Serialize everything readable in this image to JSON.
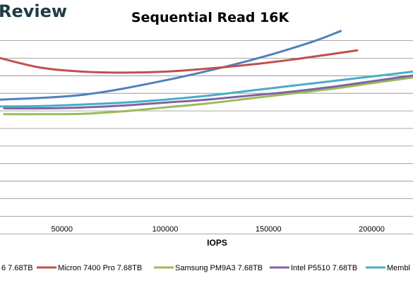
{
  "brand": {
    "text": "Review"
  },
  "chart_data": {
    "type": "line",
    "title": "Sequential Read 16K",
    "xlabel": "IOPS",
    "ylabel": "",
    "x_ticks": [
      50000,
      100000,
      150000,
      200000
    ],
    "x_tick_labels": [
      "50000",
      "100000",
      "150000",
      "200000"
    ],
    "xlim": [
      20000,
      220000
    ],
    "ylim": [
      0,
      10
    ],
    "grid": "horizontal",
    "legend_position": "bottom",
    "series": [
      {
        "name": "6 7.68TB",
        "color": "#4f81bd",
        "points": [
          [
            20000,
            6.05
          ],
          [
            60000,
            6.3
          ],
          [
            100000,
            7.05
          ],
          [
            140000,
            8.05
          ],
          [
            170000,
            9.0
          ],
          [
            185000,
            9.6
          ]
        ]
      },
      {
        "name": "Micron 7400 Pro 7.68TB",
        "color": "#c0504d",
        "points": [
          [
            20000,
            8.2
          ],
          [
            40000,
            7.7
          ],
          [
            60000,
            7.5
          ],
          [
            80000,
            7.45
          ],
          [
            100000,
            7.5
          ],
          [
            120000,
            7.65
          ],
          [
            140000,
            7.85
          ],
          [
            160000,
            8.1
          ],
          [
            180000,
            8.4
          ],
          [
            193000,
            8.6
          ]
        ]
      },
      {
        "name": "Samsung PM9A3 7.68TB",
        "color": "#9bbb59",
        "points": [
          [
            22000,
            5.3
          ],
          [
            40000,
            5.3
          ],
          [
            60000,
            5.32
          ],
          [
            80000,
            5.45
          ],
          [
            100000,
            5.65
          ],
          [
            120000,
            5.85
          ],
          [
            140000,
            6.1
          ],
          [
            160000,
            6.35
          ],
          [
            180000,
            6.6
          ],
          [
            200000,
            6.9
          ],
          [
            220000,
            7.2
          ]
        ]
      },
      {
        "name": "Intel P5510 7.68TB",
        "color": "#8064a2",
        "points": [
          [
            22000,
            5.6
          ],
          [
            40000,
            5.6
          ],
          [
            60000,
            5.65
          ],
          [
            80000,
            5.75
          ],
          [
            100000,
            5.9
          ],
          [
            120000,
            6.05
          ],
          [
            140000,
            6.25
          ],
          [
            160000,
            6.45
          ],
          [
            180000,
            6.7
          ],
          [
            200000,
            7.0
          ],
          [
            220000,
            7.3
          ]
        ]
      },
      {
        "name": "Membl",
        "color": "#4bacc6",
        "points": [
          [
            20000,
            5.7
          ],
          [
            40000,
            5.72
          ],
          [
            60000,
            5.8
          ],
          [
            80000,
            5.9
          ],
          [
            100000,
            6.05
          ],
          [
            120000,
            6.25
          ],
          [
            140000,
            6.5
          ],
          [
            160000,
            6.75
          ],
          [
            180000,
            7.0
          ],
          [
            200000,
            7.25
          ],
          [
            220000,
            7.5
          ]
        ]
      }
    ]
  }
}
